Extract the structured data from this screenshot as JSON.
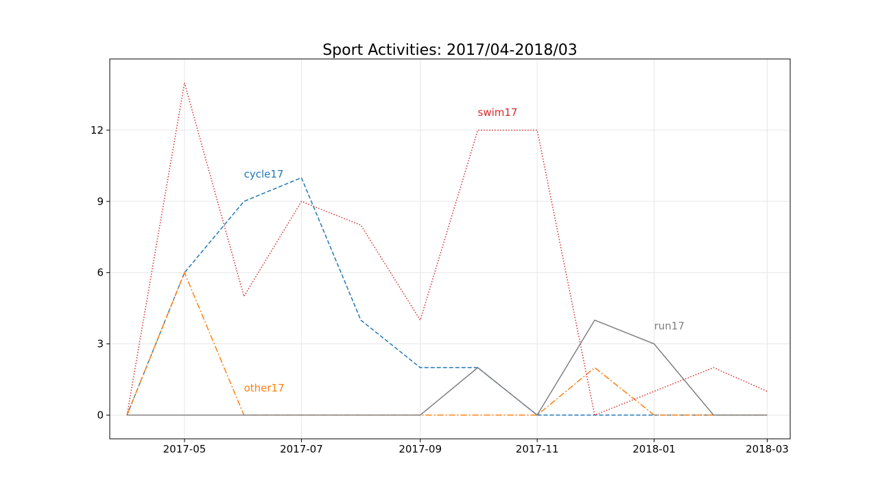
{
  "chart_data": {
    "type": "line",
    "title": "Sport Activities: 2017/04-2018/03",
    "xlabel": "",
    "ylabel": "",
    "x": [
      "2017-04",
      "2017-05",
      "2017-06",
      "2017-07",
      "2017-08",
      "2017-09",
      "2017-10",
      "2017-11",
      "2017-12",
      "2018-01",
      "2018-02",
      "2018-03"
    ],
    "x_ticks": [
      "2017-05",
      "2017-07",
      "2017-09",
      "2017-11",
      "2018-01",
      "2018-03"
    ],
    "y_ticks": [
      0,
      3,
      6,
      9,
      12
    ],
    "xlim": [
      "2017-03-23",
      "2018-03-13"
    ],
    "ylim": [
      -1,
      15
    ],
    "grid": true,
    "series": [
      {
        "name": "cycle17",
        "values": [
          0,
          6,
          9,
          10,
          4,
          2,
          2,
          0,
          0,
          0,
          0,
          0
        ],
        "color": "#1f77b4",
        "style": "dashed",
        "label_at": [
          "2017-06",
          10
        ]
      },
      {
        "name": "other17",
        "values": [
          0,
          6,
          0,
          0,
          0,
          0,
          0,
          0,
          2,
          0,
          0,
          0
        ],
        "color": "#ff7f0e",
        "style": "dashdot",
        "label_at": [
          "2017-06",
          1
        ]
      },
      {
        "name": "swim17",
        "values": [
          0,
          14,
          5,
          9,
          8,
          4,
          12,
          12,
          0,
          1,
          2,
          1
        ],
        "color": "#d62728",
        "style": "dotted",
        "label_at": [
          "2017-10",
          12.6
        ]
      },
      {
        "name": "run17",
        "values": [
          0,
          0,
          0,
          0,
          0,
          0,
          2,
          0,
          4,
          3,
          0,
          0
        ],
        "color": "#7f7f7f",
        "style": "solid",
        "label_at": [
          "2018-01",
          3.6
        ]
      }
    ]
  }
}
